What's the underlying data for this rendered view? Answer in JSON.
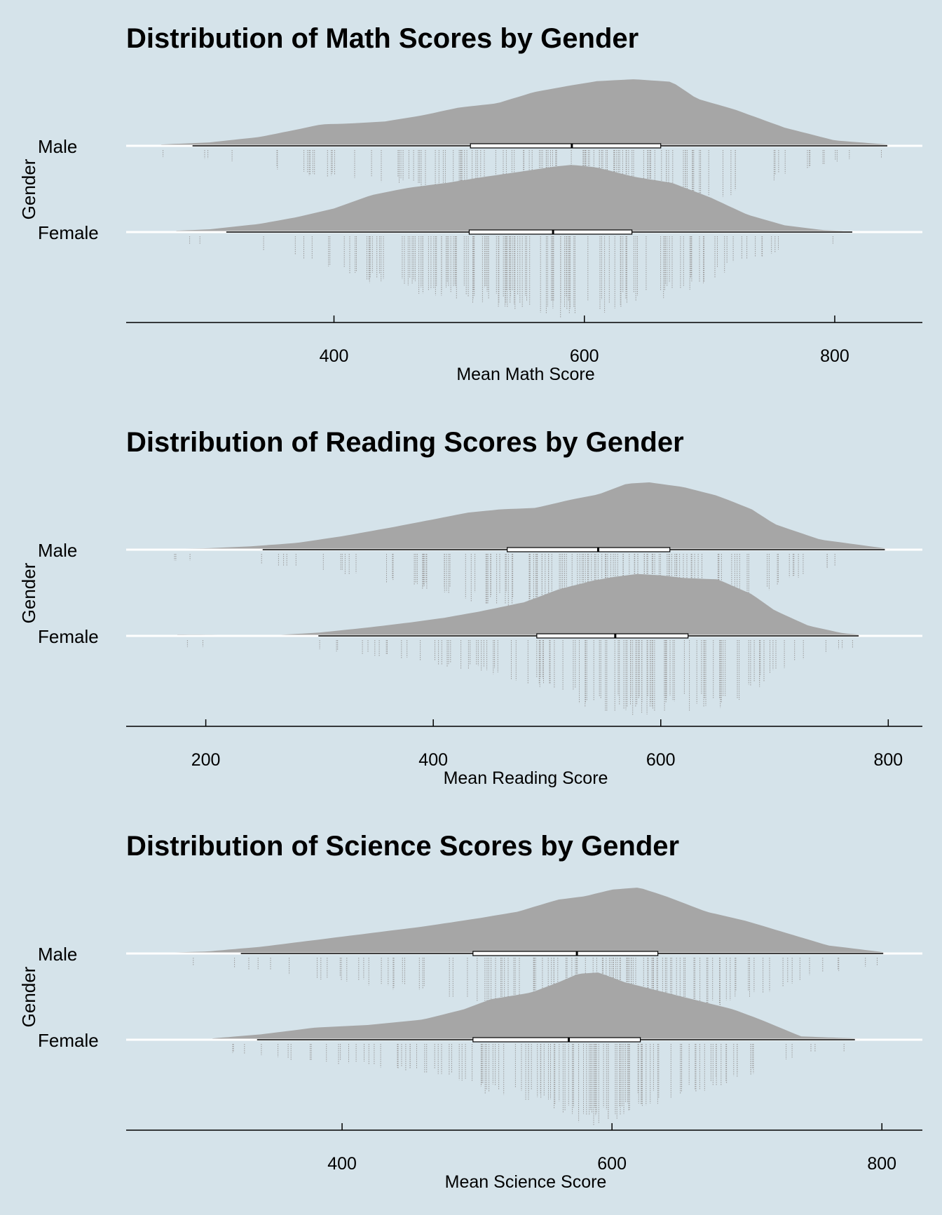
{
  "colors": {
    "background": "#d5e3ea",
    "density": "#a6a6a6",
    "raincloud_points": "#9a9a9a",
    "axis": "#000000",
    "baseline": "#ffffff"
  },
  "chart_data": [
    {
      "type": "raincloud",
      "title": "Distribution of Math Scores by Gender",
      "xlabel": "Mean Math Score",
      "ylabel": "Gender",
      "xlim": [
        234,
        870
      ],
      "xticks": [
        400,
        600,
        800
      ],
      "tick_labels": [
        "400",
        "600",
        "800"
      ],
      "categories": [
        "Male",
        "Female"
      ],
      "series": [
        {
          "name": "Male",
          "range": [
            262,
            842
          ],
          "box": {
            "whisker_low": 287,
            "q1": 509,
            "median": 590,
            "q3": 661,
            "whisker_high": 842
          },
          "density_x": [
            262,
            300,
            340,
            370,
            390,
            410,
            440,
            470,
            500,
            530,
            560,
            590,
            610,
            640,
            670,
            690,
            720,
            760,
            800,
            842
          ],
          "density_y": [
            0.02,
            0.05,
            0.13,
            0.24,
            0.32,
            0.33,
            0.36,
            0.45,
            0.57,
            0.63,
            0.8,
            0.9,
            0.96,
            0.99,
            0.95,
            0.7,
            0.54,
            0.27,
            0.08,
            0.02
          ]
        },
        {
          "name": "Female",
          "range": [
            274,
            814
          ],
          "box": {
            "whisker_low": 314,
            "q1": 508,
            "median": 575,
            "q3": 638,
            "whisker_high": 814
          },
          "density_x": [
            274,
            300,
            340,
            370,
            400,
            430,
            460,
            490,
            520,
            550,
            575,
            590,
            610,
            640,
            670,
            700,
            730,
            760,
            790,
            814
          ],
          "density_y": [
            0.02,
            0.04,
            0.12,
            0.22,
            0.35,
            0.55,
            0.66,
            0.73,
            0.82,
            0.9,
            0.97,
            1.0,
            0.96,
            0.82,
            0.73,
            0.52,
            0.26,
            0.1,
            0.03,
            0.01
          ]
        }
      ]
    },
    {
      "type": "raincloud",
      "title": "Distribution of Reading Scores by Gender",
      "xlabel": "Mean Reading Score",
      "ylabel": "Gender",
      "xlim": [
        130,
        830
      ],
      "xticks": [
        200,
        400,
        600,
        800
      ],
      "tick_labels": [
        "200",
        "400",
        "600",
        "800"
      ],
      "categories": [
        "Male",
        "Female"
      ],
      "series": [
        {
          "name": "Male",
          "range": [
            160,
            797
          ],
          "box": {
            "whisker_low": 250,
            "q1": 465,
            "median": 545,
            "q3": 608,
            "whisker_high": 797
          },
          "density_x": [
            160,
            200,
            240,
            280,
            320,
            360,
            400,
            430,
            460,
            490,
            520,
            545,
            570,
            590,
            620,
            650,
            680,
            700,
            740,
            797
          ],
          "density_y": [
            0.01,
            0.02,
            0.05,
            0.1,
            0.2,
            0.32,
            0.45,
            0.55,
            0.6,
            0.62,
            0.74,
            0.82,
            0.98,
            1.0,
            0.93,
            0.8,
            0.6,
            0.38,
            0.15,
            0.02
          ]
        },
        {
          "name": "Female",
          "range": [
            175,
            774
          ],
          "box": {
            "whisker_low": 299,
            "q1": 491,
            "median": 560,
            "q3": 624,
            "whisker_high": 774
          },
          "density_x": [
            175,
            260,
            300,
            340,
            380,
            410,
            440,
            480,
            510,
            540,
            560,
            580,
            600,
            620,
            650,
            680,
            700,
            730,
            760,
            774
          ],
          "density_y": [
            0.02,
            0.01,
            0.05,
            0.12,
            0.2,
            0.27,
            0.36,
            0.5,
            0.69,
            0.82,
            0.88,
            0.92,
            0.9,
            0.86,
            0.84,
            0.62,
            0.38,
            0.15,
            0.04,
            0.02
          ]
        }
      ]
    },
    {
      "type": "raincloud",
      "title": "Distribution of Science Scores by Gender",
      "xlabel": "Mean Science Score",
      "ylabel": "Gender",
      "xlim": [
        240,
        830
      ],
      "xticks": [
        400,
        600,
        800
      ],
      "tick_labels": [
        "400",
        "600",
        "800"
      ],
      "categories": [
        "Male",
        "Female"
      ],
      "series": [
        {
          "name": "Male",
          "range": [
            267,
            801
          ],
          "box": {
            "whisker_low": 325,
            "q1": 497,
            "median": 574,
            "q3": 634,
            "whisker_high": 801
          },
          "density_x": [
            267,
            300,
            340,
            380,
            420,
            460,
            500,
            530,
            560,
            580,
            600,
            620,
            640,
            670,
            700,
            730,
            760,
            801
          ],
          "density_y": [
            0.01,
            0.03,
            0.1,
            0.2,
            0.3,
            0.4,
            0.52,
            0.62,
            0.8,
            0.85,
            0.95,
            0.98,
            0.85,
            0.62,
            0.48,
            0.3,
            0.12,
            0.02
          ]
        },
        {
          "name": "Female",
          "range": [
            304,
            780
          ],
          "box": {
            "whisker_low": 337,
            "q1": 497,
            "median": 568,
            "q3": 621,
            "whisker_high": 780
          },
          "density_x": [
            304,
            340,
            380,
            420,
            460,
            490,
            510,
            540,
            560,
            575,
            590,
            610,
            640,
            660,
            690,
            710,
            740,
            780
          ],
          "density_y": [
            0.02,
            0.08,
            0.18,
            0.22,
            0.3,
            0.45,
            0.6,
            0.7,
            0.85,
            0.98,
            1.0,
            0.85,
            0.7,
            0.6,
            0.45,
            0.3,
            0.05,
            0.02
          ]
        }
      ]
    }
  ]
}
